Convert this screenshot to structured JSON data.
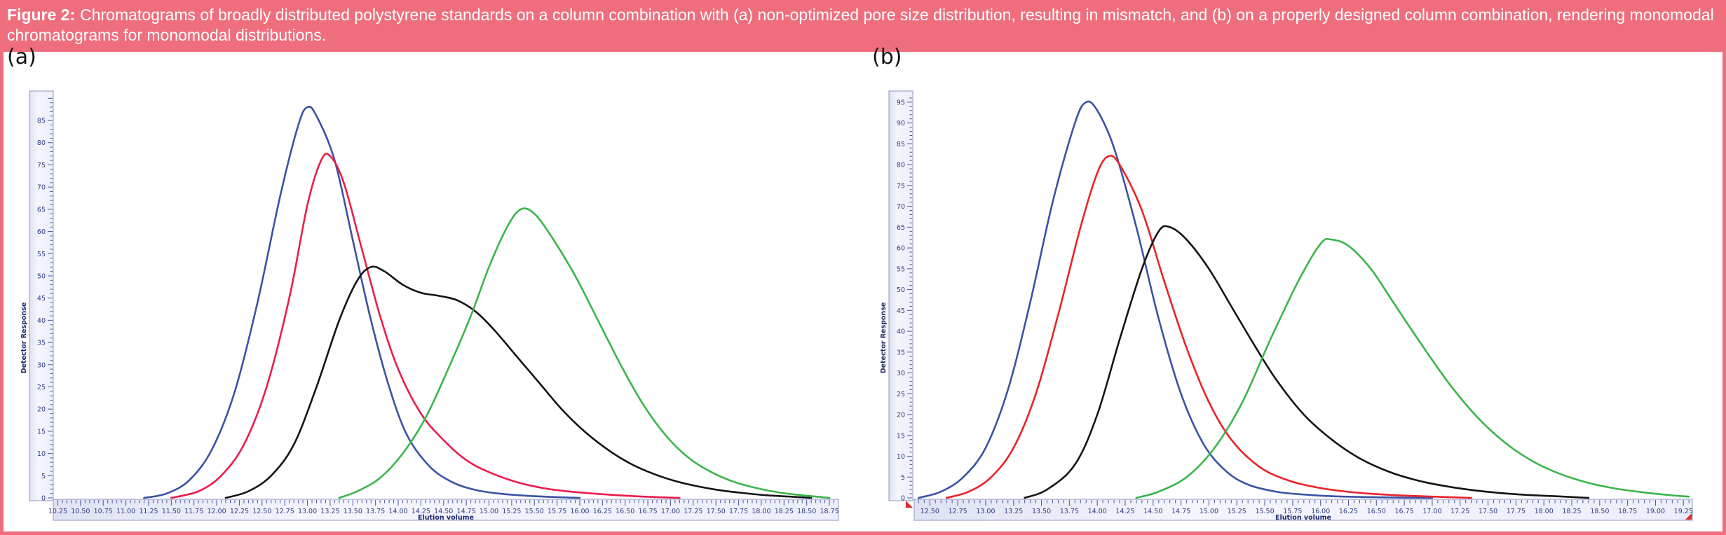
{
  "caption": {
    "prefix": "Figure 2:",
    "text": "Chromatograms of broadly distributed polystyrene standards on a column combination with (a) non-optimized pore size distribution, resulting in mismatch, and (b) on a properly designed column combination, rendering monomodal chromatograms for monomodal distributions."
  },
  "colors": {
    "band": "#ef6e7d",
    "ruler_bg": "#f2f3fd",
    "ruler_border": "#8f97c3",
    "tick": "#4a569e",
    "tick_label": "#2e3d85",
    "corner_marker": "#e02b2b"
  },
  "chart_data": [
    {
      "type": "line",
      "panel_label": "(a)",
      "title": "",
      "xlabel": "Elution volume",
      "ylabel": "Detector Response",
      "x_axis": {
        "min": 10.2,
        "max": 18.85,
        "first_label": 10.25,
        "last_label": 18.75,
        "label_step": 0.25,
        "minor_step": 0.05
      },
      "y_axis": {
        "min": 0,
        "max": 91,
        "first_label": 0,
        "last_label": 85,
        "label_step": 5,
        "minor_step": 1
      },
      "grid": false,
      "legend": "none",
      "series": [
        {
          "name": "blue",
          "color": "#3a53a4",
          "points": [
            [
              11.2,
              0
            ],
            [
              11.45,
              1
            ],
            [
              11.7,
              4
            ],
            [
              11.95,
              11
            ],
            [
              12.2,
              24
            ],
            [
              12.45,
              44
            ],
            [
              12.7,
              68
            ],
            [
              12.9,
              84
            ],
            [
              13.0,
              88
            ],
            [
              13.1,
              86
            ],
            [
              13.3,
              76
            ],
            [
              13.5,
              58
            ],
            [
              13.7,
              40
            ],
            [
              13.9,
              25
            ],
            [
              14.1,
              14
            ],
            [
              14.35,
              7
            ],
            [
              14.6,
              3.5
            ],
            [
              14.85,
              1.8
            ],
            [
              15.1,
              1.0
            ],
            [
              15.4,
              0.5
            ],
            [
              15.7,
              0.2
            ],
            [
              16.0,
              0
            ]
          ]
        },
        {
          "name": "red",
          "color": "#ec1c4d",
          "points": [
            [
              11.5,
              0
            ],
            [
              11.8,
              1.5
            ],
            [
              12.05,
              5
            ],
            [
              12.3,
              12
            ],
            [
              12.55,
              25
            ],
            [
              12.8,
              45
            ],
            [
              13.0,
              66
            ],
            [
              13.15,
              76
            ],
            [
              13.25,
              77
            ],
            [
              13.4,
              71
            ],
            [
              13.6,
              56
            ],
            [
              13.8,
              41
            ],
            [
              14.0,
              29
            ],
            [
              14.25,
              19
            ],
            [
              14.5,
              13
            ],
            [
              14.75,
              8.5
            ],
            [
              15.0,
              5.8
            ],
            [
              15.3,
              3.6
            ],
            [
              15.6,
              2.2
            ],
            [
              15.9,
              1.4
            ],
            [
              16.2,
              0.9
            ],
            [
              16.5,
              0.5
            ],
            [
              16.8,
              0.2
            ],
            [
              17.1,
              0
            ]
          ]
        },
        {
          "name": "black",
          "color": "#141414",
          "points": [
            [
              12.1,
              0
            ],
            [
              12.35,
              1.5
            ],
            [
              12.6,
              5
            ],
            [
              12.85,
              12
            ],
            [
              13.1,
              25
            ],
            [
              13.35,
              40
            ],
            [
              13.55,
              49
            ],
            [
              13.7,
              52
            ],
            [
              13.85,
              51
            ],
            [
              14.05,
              48
            ],
            [
              14.25,
              46.2
            ],
            [
              14.45,
              45.5
            ],
            [
              14.65,
              44.5
            ],
            [
              14.85,
              42
            ],
            [
              15.05,
              38
            ],
            [
              15.3,
              32
            ],
            [
              15.55,
              26
            ],
            [
              15.8,
              20
            ],
            [
              16.05,
              15
            ],
            [
              16.3,
              11
            ],
            [
              16.55,
              7.8
            ],
            [
              16.8,
              5.5
            ],
            [
              17.05,
              3.8
            ],
            [
              17.3,
              2.6
            ],
            [
              17.55,
              1.7
            ],
            [
              17.8,
              1.1
            ],
            [
              18.05,
              0.6
            ],
            [
              18.3,
              0.3
            ],
            [
              18.55,
              0
            ]
          ]
        },
        {
          "name": "green",
          "color": "#3bb54a",
          "points": [
            [
              13.35,
              0
            ],
            [
              13.55,
              1.5
            ],
            [
              13.8,
              4.5
            ],
            [
              14.05,
              10
            ],
            [
              14.3,
              18
            ],
            [
              14.55,
              29
            ],
            [
              14.8,
              41
            ],
            [
              15.0,
              52
            ],
            [
              15.2,
              61
            ],
            [
              15.35,
              65
            ],
            [
              15.5,
              64
            ],
            [
              15.7,
              58.5
            ],
            [
              15.95,
              50
            ],
            [
              16.2,
              40
            ],
            [
              16.45,
              30
            ],
            [
              16.7,
              21
            ],
            [
              16.95,
              14
            ],
            [
              17.2,
              9
            ],
            [
              17.45,
              5.8
            ],
            [
              17.7,
              3.6
            ],
            [
              17.95,
              2.2
            ],
            [
              18.2,
              1.2
            ],
            [
              18.45,
              0.6
            ],
            [
              18.75,
              0
            ]
          ]
        }
      ]
    },
    {
      "type": "line",
      "panel_label": "(b)",
      "title": "",
      "xlabel": "Elution volume",
      "ylabel": "Detector Response",
      "x_axis": {
        "min": 12.36,
        "max": 19.33,
        "first_label": 12.5,
        "last_label": 19.25,
        "label_step": 0.25,
        "minor_step": 0.05
      },
      "y_axis": {
        "min": 0,
        "max": 97,
        "first_label": 0,
        "last_label": 95,
        "label_step": 5,
        "minor_step": 1
      },
      "grid": false,
      "legend": "none",
      "corner_markers": true,
      "series": [
        {
          "name": "blue",
          "color": "#3a53a4",
          "points": [
            [
              12.4,
              0
            ],
            [
              12.6,
              1.5
            ],
            [
              12.8,
              5
            ],
            [
              13.0,
              12
            ],
            [
              13.2,
              26
            ],
            [
              13.4,
              47
            ],
            [
              13.6,
              71
            ],
            [
              13.8,
              90
            ],
            [
              13.9,
              95
            ],
            [
              14.0,
              93
            ],
            [
              14.15,
              84
            ],
            [
              14.35,
              65
            ],
            [
              14.55,
              43
            ],
            [
              14.75,
              25
            ],
            [
              14.95,
              13
            ],
            [
              15.15,
              6.5
            ],
            [
              15.35,
              3.2
            ],
            [
              15.6,
              1.5
            ],
            [
              15.85,
              0.8
            ],
            [
              16.1,
              0.4
            ],
            [
              16.5,
              0.15
            ],
            [
              17.0,
              0
            ]
          ]
        },
        {
          "name": "red",
          "color": "#ea2328",
          "points": [
            [
              12.65,
              0
            ],
            [
              12.85,
              1.5
            ],
            [
              13.05,
              5
            ],
            [
              13.25,
              12
            ],
            [
              13.45,
              25
            ],
            [
              13.65,
              44
            ],
            [
              13.85,
              65
            ],
            [
              14.0,
              78
            ],
            [
              14.1,
              82
            ],
            [
              14.2,
              80
            ],
            [
              14.4,
              69
            ],
            [
              14.6,
              52
            ],
            [
              14.8,
              36
            ],
            [
              15.0,
              23
            ],
            [
              15.2,
              14
            ],
            [
              15.45,
              7.5
            ],
            [
              15.7,
              4.3
            ],
            [
              15.95,
              2.6
            ],
            [
              16.2,
              1.6
            ],
            [
              16.45,
              1.0
            ],
            [
              16.7,
              0.6
            ],
            [
              17.0,
              0.3
            ],
            [
              17.35,
              0
            ]
          ]
        },
        {
          "name": "black",
          "color": "#141414",
          "points": [
            [
              13.35,
              0
            ],
            [
              13.55,
              2
            ],
            [
              13.8,
              8
            ],
            [
              14.0,
              20
            ],
            [
              14.2,
              38
            ],
            [
              14.4,
              55
            ],
            [
              14.55,
              64
            ],
            [
              14.65,
              65
            ],
            [
              14.8,
              62
            ],
            [
              15.0,
              55
            ],
            [
              15.2,
              46
            ],
            [
              15.4,
              37
            ],
            [
              15.6,
              28.5
            ],
            [
              15.85,
              20
            ],
            [
              16.1,
              14
            ],
            [
              16.35,
              9.5
            ],
            [
              16.6,
              6.4
            ],
            [
              16.85,
              4.3
            ],
            [
              17.1,
              2.9
            ],
            [
              17.35,
              1.9
            ],
            [
              17.6,
              1.2
            ],
            [
              17.85,
              0.7
            ],
            [
              18.1,
              0.4
            ],
            [
              18.4,
              0
            ]
          ]
        },
        {
          "name": "green",
          "color": "#3bb54a",
          "points": [
            [
              14.35,
              0
            ],
            [
              14.55,
              1.5
            ],
            [
              14.8,
              5
            ],
            [
              15.05,
              12
            ],
            [
              15.3,
              23
            ],
            [
              15.55,
              38
            ],
            [
              15.8,
              52
            ],
            [
              16.0,
              61
            ],
            [
              16.1,
              62
            ],
            [
              16.25,
              60.5
            ],
            [
              16.45,
              55
            ],
            [
              16.65,
              47
            ],
            [
              16.9,
              37
            ],
            [
              17.15,
              27.5
            ],
            [
              17.4,
              19.5
            ],
            [
              17.65,
              13.3
            ],
            [
              17.9,
              8.8
            ],
            [
              18.15,
              5.7
            ],
            [
              18.4,
              3.6
            ],
            [
              18.65,
              2.2
            ],
            [
              18.9,
              1.3
            ],
            [
              19.15,
              0.6
            ],
            [
              19.3,
              0.3
            ]
          ]
        }
      ]
    }
  ]
}
